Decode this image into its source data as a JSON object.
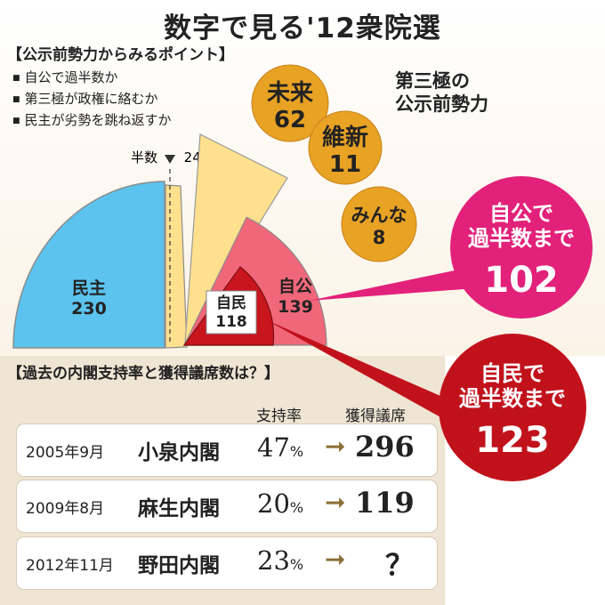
{
  "title": "数字で見る'12衆院選",
  "points": {
    "heading": "【公示前勢力からみるポイント】",
    "items": [
      "自公で過半数か",
      "第三極が政権に絡むか",
      "民主が劣勢を跳ね返すか"
    ]
  },
  "third_pole_title": [
    "第三極の",
    "公示前勢力"
  ],
  "colors": {
    "dpj": "#5bc3ee",
    "third": "#ffe08e",
    "ljp_komeito": "#f0677a",
    "ldp": "#c9151e",
    "bubble": "#e8a224",
    "callout_pink": "#e2217a",
    "callout_red": "#c1121c"
  },
  "chart_data": [
    {
      "type": "pie",
      "subtype": "half-donut",
      "labels": [
        {
          "key": "dpj",
          "name": "民主",
          "value": 230
        },
        {
          "key": "ljp_komeito",
          "name": "自公",
          "value": 139
        },
        {
          "key": "ldp",
          "name": "自民",
          "value": 118
        }
      ],
      "majority_marker": {
        "label": "半数",
        "value": 240
      },
      "third_pole": [
        {
          "name": "未来",
          "value": 62
        },
        {
          "name": "維新",
          "value": 11
        },
        {
          "name": "みんな",
          "value": 8
        }
      ],
      "callouts": [
        {
          "lines": [
            "自公で",
            "過半数まで"
          ],
          "value": 102
        },
        {
          "lines": [
            "自民で",
            "過半数まで"
          ],
          "value": 123
        }
      ]
    },
    {
      "type": "table",
      "title": "【過去の内閣支持率と獲得議席数は？】",
      "columns": [
        "支持率",
        "獲得議席"
      ],
      "rows": [
        {
          "date": "2005年9月",
          "cabinet": "小泉内閣",
          "rate": "47",
          "unit": "%",
          "seats": "296"
        },
        {
          "date": "2009年8月",
          "cabinet": "麻生内閣",
          "rate": "20",
          "unit": "%",
          "seats": "119"
        },
        {
          "date": "2012年11月",
          "cabinet": "野田内閣",
          "rate": "23",
          "unit": "%",
          "seats": "？"
        }
      ]
    }
  ]
}
